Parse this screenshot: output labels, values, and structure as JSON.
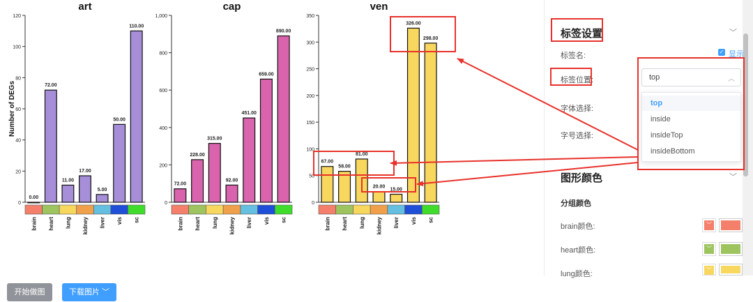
{
  "chart_data": [
    {
      "type": "bar",
      "title": "art",
      "ylabel": "Number of DEGs",
      "categories": [
        "brain",
        "heart",
        "lung",
        "kidney",
        "liver",
        "vis",
        "sc"
      ],
      "values": [
        0.0,
        72.0,
        11.0,
        17.0,
        5.0,
        50.0,
        110.0
      ],
      "value_labels": [
        "0.00",
        "72.00",
        "11.00",
        "17.00",
        "5.00",
        "50.00",
        "110.00"
      ],
      "ylim": [
        0,
        120
      ],
      "yticks": [
        "0",
        "20",
        "40",
        "60",
        "80",
        "100",
        "120"
      ],
      "bar_color": "#a68fd8"
    },
    {
      "type": "bar",
      "title": "cap",
      "categories": [
        "brain",
        "heart",
        "lung",
        "kidney",
        "liver",
        "vis",
        "sc"
      ],
      "values": [
        72.0,
        228.0,
        315.0,
        92.0,
        451.0,
        659.0,
        890.0
      ],
      "value_labels": [
        "72.00",
        "228.00",
        "315.00",
        "92.00",
        "451.00",
        "659.00",
        "890.00"
      ],
      "ylim": [
        0,
        1000
      ],
      "yticks": [
        "0",
        "200",
        "400",
        "600",
        "800",
        "1,000"
      ],
      "bar_color": "#d964ad"
    },
    {
      "type": "bar",
      "title": "ven",
      "categories": [
        "brain",
        "heart",
        "lung",
        "kidney",
        "liver",
        "vis",
        "sc"
      ],
      "values": [
        67.0,
        58.0,
        81.0,
        20.0,
        15.0,
        326.0,
        298.0
      ],
      "value_labels": [
        "67.00",
        "58.00",
        "81.00",
        "20.00",
        "15.00",
        "326.00",
        "298.00"
      ],
      "ylim": [
        0,
        350
      ],
      "yticks": [
        "0",
        "50",
        "100",
        "150",
        "200",
        "250",
        "300",
        "350"
      ],
      "bar_color": "#f8d75e"
    }
  ],
  "group_colors": [
    "#f47f6b",
    "#9dc45f",
    "#f8d75e",
    "#f0a04b",
    "#64bfe0",
    "#1f4fd8",
    "#3fdc2b"
  ],
  "panel": {
    "label_settings_title": "标签设置",
    "label_name_label": "标签名:",
    "label_name_checkbox": "显示",
    "label_position_label": "标签位置:",
    "label_position_value": "top",
    "label_position_options": [
      "top",
      "inside",
      "insideTop",
      "insideBottom"
    ],
    "font_select_label": "字体选择:",
    "font_size_label": "字号选择:",
    "shape_color_title": "图形颜色",
    "group_color_title": "分组颜色",
    "color_rows": [
      {
        "label": "brain颜色:",
        "color": "#f47f6b"
      },
      {
        "label": "heart颜色:",
        "color": "#9dc45f"
      },
      {
        "label": "lung颜色:",
        "color": "#f8d75e"
      }
    ]
  },
  "buttons": {
    "start_plot": "开始做图",
    "download": "下载图片 ﹀"
  },
  "annotation_color": "#e8312a"
}
